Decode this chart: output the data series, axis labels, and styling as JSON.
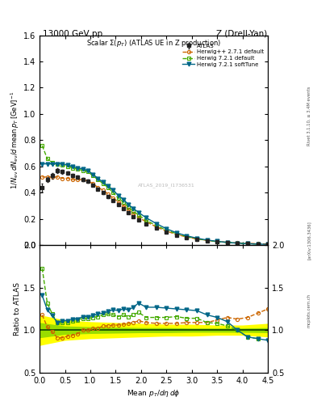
{
  "title_top_left": "13000 GeV pp",
  "title_top_right": "Z (Drell-Yan)",
  "plot_title": "Scalar Σ(p_T) (ATLAS UE in Z production)",
  "watermark": "ATLAS_2019_I1736531",
  "right_label1": "Rivet 3.1.10, ≥ 3.4M events",
  "right_label2": "[arXiv:1306.3436]",
  "right_label3": "mcplots.cern.ch",
  "atlas_x": [
    0.05,
    0.15,
    0.25,
    0.35,
    0.45,
    0.55,
    0.65,
    0.75,
    0.85,
    0.95,
    1.05,
    1.15,
    1.25,
    1.35,
    1.45,
    1.55,
    1.65,
    1.75,
    1.85,
    1.95,
    2.1,
    2.3,
    2.5,
    2.7,
    2.9,
    3.1,
    3.3,
    3.5,
    3.7,
    3.9,
    4.1,
    4.3,
    4.5
  ],
  "atlas_y": [
    0.44,
    0.5,
    0.53,
    0.57,
    0.56,
    0.55,
    0.53,
    0.52,
    0.5,
    0.49,
    0.46,
    0.43,
    0.4,
    0.37,
    0.34,
    0.31,
    0.28,
    0.25,
    0.22,
    0.19,
    0.165,
    0.13,
    0.1,
    0.076,
    0.058,
    0.044,
    0.034,
    0.026,
    0.02,
    0.016,
    0.013,
    0.01,
    0.008
  ],
  "atlas_yerr": [
    0.03,
    0.02,
    0.02,
    0.02,
    0.015,
    0.015,
    0.012,
    0.012,
    0.012,
    0.012,
    0.01,
    0.01,
    0.008,
    0.008,
    0.007,
    0.006,
    0.006,
    0.005,
    0.005,
    0.004,
    0.004,
    0.003,
    0.003,
    0.002,
    0.002,
    0.002,
    0.001,
    0.001,
    0.001,
    0.001,
    0.001,
    0.001,
    0.001
  ],
  "herwigpp_x": [
    0.05,
    0.15,
    0.25,
    0.35,
    0.45,
    0.55,
    0.65,
    0.75,
    0.85,
    0.95,
    1.05,
    1.15,
    1.25,
    1.35,
    1.45,
    1.55,
    1.65,
    1.75,
    1.85,
    1.95,
    2.1,
    2.3,
    2.5,
    2.7,
    2.9,
    3.1,
    3.3,
    3.5,
    3.7,
    3.9,
    4.1,
    4.3,
    4.5
  ],
  "herwigpp_y": [
    0.52,
    0.52,
    0.52,
    0.52,
    0.51,
    0.51,
    0.5,
    0.5,
    0.5,
    0.49,
    0.47,
    0.44,
    0.42,
    0.39,
    0.36,
    0.33,
    0.3,
    0.27,
    0.24,
    0.21,
    0.18,
    0.14,
    0.108,
    0.082,
    0.063,
    0.048,
    0.037,
    0.029,
    0.023,
    0.018,
    0.015,
    0.012,
    0.01
  ],
  "herwig721_x": [
    0.05,
    0.15,
    0.25,
    0.35,
    0.45,
    0.55,
    0.65,
    0.75,
    0.85,
    0.95,
    1.05,
    1.15,
    1.25,
    1.35,
    1.45,
    1.55,
    1.65,
    1.75,
    1.85,
    1.95,
    2.1,
    2.3,
    2.5,
    2.7,
    2.9,
    3.1,
    3.3,
    3.5,
    3.7,
    3.9,
    4.1,
    4.3
  ],
  "herwig721_y": [
    0.76,
    0.66,
    0.63,
    0.62,
    0.61,
    0.6,
    0.59,
    0.58,
    0.57,
    0.56,
    0.53,
    0.5,
    0.47,
    0.44,
    0.4,
    0.36,
    0.33,
    0.29,
    0.26,
    0.23,
    0.19,
    0.15,
    0.115,
    0.088,
    0.066,
    0.05,
    0.037,
    0.028,
    0.021,
    0.016,
    0.012,
    0.009
  ],
  "herwig721soft_x": [
    0.05,
    0.15,
    0.25,
    0.35,
    0.45,
    0.55,
    0.65,
    0.75,
    0.85,
    0.95,
    1.05,
    1.15,
    1.25,
    1.35,
    1.45,
    1.55,
    1.65,
    1.75,
    1.85,
    1.95,
    2.1,
    2.3,
    2.5,
    2.7,
    2.9,
    3.1,
    3.3,
    3.5,
    3.7,
    3.9,
    4.1,
    4.3,
    4.5
  ],
  "herwig721soft_y": [
    0.62,
    0.62,
    0.62,
    0.62,
    0.62,
    0.61,
    0.6,
    0.59,
    0.58,
    0.57,
    0.54,
    0.51,
    0.48,
    0.45,
    0.42,
    0.38,
    0.35,
    0.31,
    0.28,
    0.25,
    0.21,
    0.165,
    0.126,
    0.095,
    0.072,
    0.054,
    0.04,
    0.03,
    0.022,
    0.016,
    0.012,
    0.009,
    0.007
  ],
  "ratio_herwigpp_y": [
    1.18,
    1.04,
    0.98,
    0.91,
    0.91,
    0.93,
    0.94,
    0.96,
    1.0,
    1.0,
    1.02,
    1.02,
    1.05,
    1.05,
    1.06,
    1.06,
    1.07,
    1.08,
    1.09,
    1.11,
    1.09,
    1.08,
    1.08,
    1.08,
    1.09,
    1.09,
    1.09,
    1.12,
    1.15,
    1.13,
    1.15,
    1.2,
    1.25
  ],
  "ratio_herwig721_y": [
    1.73,
    1.32,
    1.19,
    1.09,
    1.09,
    1.09,
    1.11,
    1.12,
    1.14,
    1.14,
    1.15,
    1.16,
    1.18,
    1.19,
    1.18,
    1.16,
    1.18,
    1.16,
    1.18,
    1.21,
    1.15,
    1.15,
    1.15,
    1.16,
    1.14,
    1.14,
    1.09,
    1.08,
    1.05,
    1.0,
    0.92,
    0.9
  ],
  "ratio_herwig721soft_y": [
    1.41,
    1.24,
    1.17,
    1.09,
    1.11,
    1.11,
    1.13,
    1.13,
    1.16,
    1.16,
    1.17,
    1.19,
    1.2,
    1.22,
    1.24,
    1.23,
    1.25,
    1.24,
    1.27,
    1.32,
    1.27,
    1.27,
    1.26,
    1.25,
    1.24,
    1.23,
    1.18,
    1.15,
    1.1,
    1.0,
    0.92,
    0.9,
    0.88
  ],
  "band_x": [
    0.0,
    0.5,
    1.0,
    1.5,
    2.0,
    2.5,
    3.0,
    3.5,
    4.0,
    4.5
  ],
  "band_yellow_lo": [
    0.82,
    0.88,
    0.9,
    0.91,
    0.92,
    0.93,
    0.93,
    0.94,
    0.94,
    0.92
  ],
  "band_yellow_hi": [
    1.18,
    1.12,
    1.1,
    1.09,
    1.08,
    1.07,
    1.07,
    1.06,
    1.06,
    1.08
  ],
  "band_green_lo": [
    0.91,
    0.95,
    0.96,
    0.965,
    0.97,
    0.97,
    0.975,
    0.975,
    0.975,
    0.97
  ],
  "band_green_hi": [
    1.09,
    1.05,
    1.04,
    1.035,
    1.03,
    1.03,
    1.025,
    1.025,
    1.025,
    1.03
  ],
  "color_atlas": "#222222",
  "color_herwigpp": "#cc6600",
  "color_herwig721": "#44aa00",
  "color_herwig721soft": "#006688",
  "main_ylim": [
    0.0,
    1.6
  ],
  "main_yticks": [
    0.0,
    0.2,
    0.4,
    0.6,
    0.8,
    1.0,
    1.2,
    1.4,
    1.6
  ],
  "ratio_ylim": [
    0.5,
    2.0
  ],
  "ratio_yticks": [
    0.5,
    1.0,
    1.5,
    2.0
  ],
  "xlim": [
    0.0,
    4.5
  ]
}
